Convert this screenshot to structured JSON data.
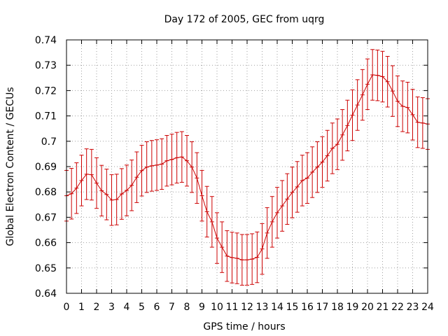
{
  "chart_data": {
    "type": "line",
    "title": "Day 172 of 2005, GEC from uqrg",
    "xlabel": "GPS time / hours",
    "ylabel": "Global Electron Content / GECUs",
    "xlim": [
      0,
      24
    ],
    "ylim": [
      0.64,
      0.74
    ],
    "grid": true,
    "error_bars": true,
    "color": "#cc0000",
    "xticks": [
      "0",
      "1",
      "2",
      "3",
      "4",
      "5",
      "6",
      "7",
      "8",
      "9",
      "10",
      "11",
      "12",
      "13",
      "14",
      "15",
      "16",
      "17",
      "18",
      "19",
      "20",
      "21",
      "22",
      "23",
      "24"
    ],
    "yticks": [
      "0.64",
      "0.65",
      "0.66",
      "0.67",
      "0.68",
      "0.69",
      "0.7",
      "0.71",
      "0.72",
      "0.73",
      "0.74"
    ],
    "series": [
      {
        "x": [
          0,
          0.333,
          0.667,
          1,
          1.333,
          1.667,
          2,
          2.333,
          2.667,
          3,
          3.333,
          3.667,
          4,
          4.333,
          4.667,
          5,
          5.333,
          5.667,
          6,
          6.333,
          6.667,
          7,
          7.333,
          7.667,
          8,
          8.333,
          8.667,
          9,
          9.333,
          9.667,
          10,
          10.333,
          10.667,
          11,
          11.333,
          11.667,
          12,
          12.333,
          12.667,
          13,
          13.333,
          13.667,
          14,
          14.333,
          14.667,
          15,
          15.333,
          15.667,
          16,
          16.333,
          16.667,
          17,
          17.333,
          17.667,
          18,
          18.333,
          18.667,
          19,
          19.333,
          19.667,
          20,
          20.333,
          20.667,
          21,
          21.333,
          21.667,
          22,
          22.333,
          22.667,
          23,
          23.333,
          23.667,
          24
        ],
        "y": [
          0.6785,
          0.6793,
          0.6815,
          0.6845,
          0.687,
          0.6868,
          0.6835,
          0.6805,
          0.679,
          0.6768,
          0.677,
          0.6792,
          0.6806,
          0.6826,
          0.6858,
          0.6884,
          0.6898,
          0.6903,
          0.6906,
          0.691,
          0.6923,
          0.6928,
          0.6935,
          0.6938,
          0.6923,
          0.6898,
          0.6855,
          0.6785,
          0.6722,
          0.6682,
          0.6618,
          0.6582,
          0.6547,
          0.6541,
          0.6538,
          0.6532,
          0.6532,
          0.6535,
          0.6542,
          0.6575,
          0.6638,
          0.6682,
          0.6718,
          0.6745,
          0.6772,
          0.6798,
          0.682,
          0.6845,
          0.6855,
          0.6878,
          0.6898,
          0.6918,
          0.6943,
          0.6972,
          0.6988,
          0.7025,
          0.7062,
          0.7103,
          0.7143,
          0.7183,
          0.7225,
          0.7262,
          0.726,
          0.7255,
          0.7235,
          0.7198,
          0.7158,
          0.7138,
          0.7133,
          0.7105,
          0.7075,
          0.7072,
          0.7068
        ],
        "err": 0.01
      }
    ]
  }
}
